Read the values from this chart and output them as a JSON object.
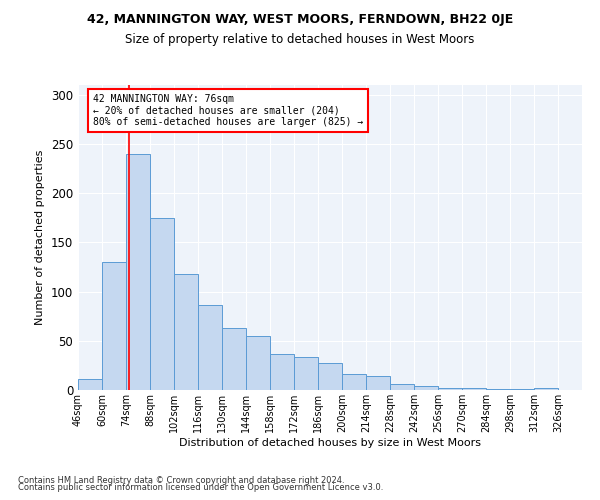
{
  "title1": "42, MANNINGTON WAY, WEST MOORS, FERNDOWN, BH22 0JE",
  "title2": "Size of property relative to detached houses in West Moors",
  "xlabel": "Distribution of detached houses by size in West Moors",
  "ylabel": "Number of detached properties",
  "footer1": "Contains HM Land Registry data © Crown copyright and database right 2024.",
  "footer2": "Contains public sector information licensed under the Open Government Licence v3.0.",
  "annotation_line1": "42 MANNINGTON WAY: 76sqm",
  "annotation_line2": "← 20% of detached houses are smaller (204)",
  "annotation_line3": "80% of semi-detached houses are larger (825) →",
  "bar_color": "#c5d8f0",
  "bar_edge_color": "#5b9bd5",
  "redline_x": 76,
  "bin_edges": [
    46,
    60,
    74,
    88,
    102,
    116,
    130,
    144,
    158,
    172,
    186,
    200,
    214,
    228,
    242,
    256,
    270,
    284,
    298,
    312,
    326
  ],
  "bar_heights": [
    11,
    130,
    240,
    175,
    118,
    86,
    63,
    55,
    37,
    34,
    27,
    16,
    14,
    6,
    4,
    2,
    2,
    1,
    1,
    2
  ],
  "ylim": [
    0,
    310
  ],
  "yticks": [
    0,
    50,
    100,
    150,
    200,
    250,
    300
  ],
  "background_color": "#eef3fa"
}
